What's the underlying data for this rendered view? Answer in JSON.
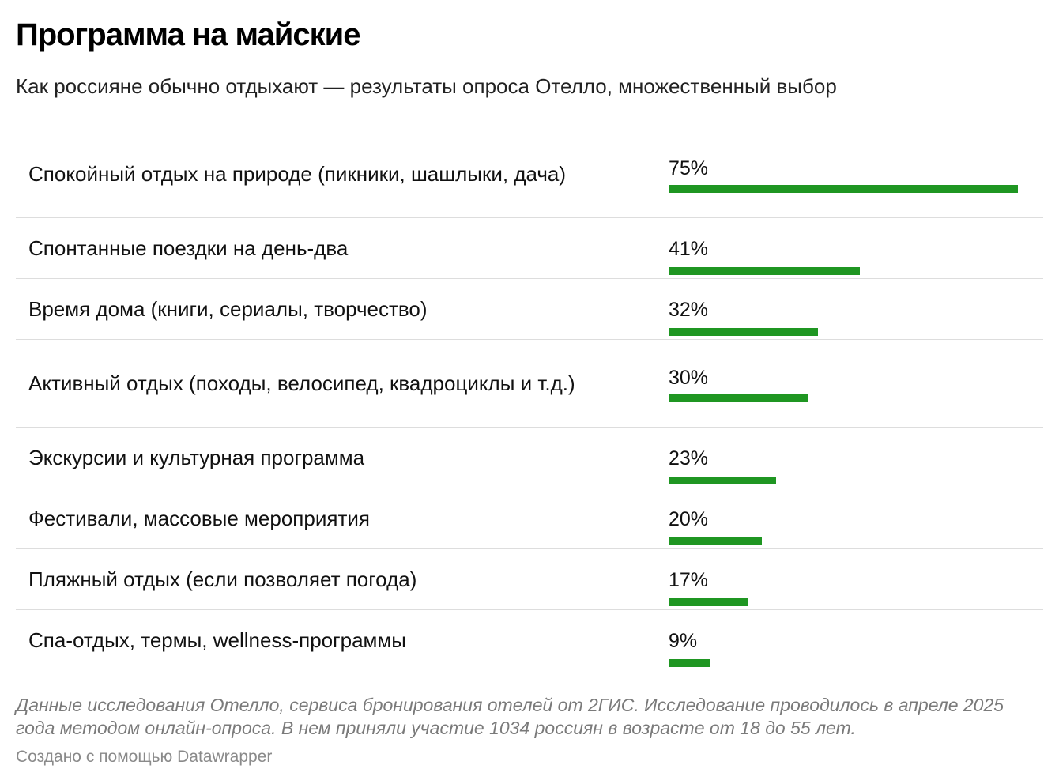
{
  "header": {
    "title": "Программа на майские",
    "subtitle": "Как россияне обычно отдыхают — результаты опроса Отелло, множественный выбор"
  },
  "chart_data": {
    "type": "bar",
    "orientation": "horizontal",
    "title": "Программа на майские",
    "subtitle": "Как россияне обычно отдыхают — результаты опроса Отелло, множественный выбор",
    "categories": [
      "Спокойный отдых на природе (пикники, шашлыки, дача)",
      "Спонтанные поездки на день-два",
      "Время дома (книги, сериалы, творчество)",
      "Активный отдых (походы, велосипед, квадроциклы и т.д.)",
      "Экскурсии и культурная программа",
      "Фестивали, массовые мероприятия",
      "Пляжный отдых (если позволяет погода)",
      "Спа-отдых, термы, wellness-программы"
    ],
    "values": [
      75,
      41,
      32,
      30,
      23,
      20,
      17,
      9
    ],
    "value_labels": [
      "75%",
      "41%",
      "32%",
      "30%",
      "23%",
      "20%",
      "17%",
      "9%"
    ],
    "unit": "%",
    "xlim": [
      0,
      75
    ],
    "bar_color": "#1f9622",
    "grid": false,
    "legend": "none"
  },
  "footer": {
    "notes": "Данные исследования Отелло, сервиса бронирования отелей от 2ГИС. Исследование проводилось в апреле 2025 года методом онлайн-опроса. В нем приняли участие 1034 россиян в возрасте от 18 до 55 лет.",
    "credit": "Создано с помощью Datawrapper"
  }
}
